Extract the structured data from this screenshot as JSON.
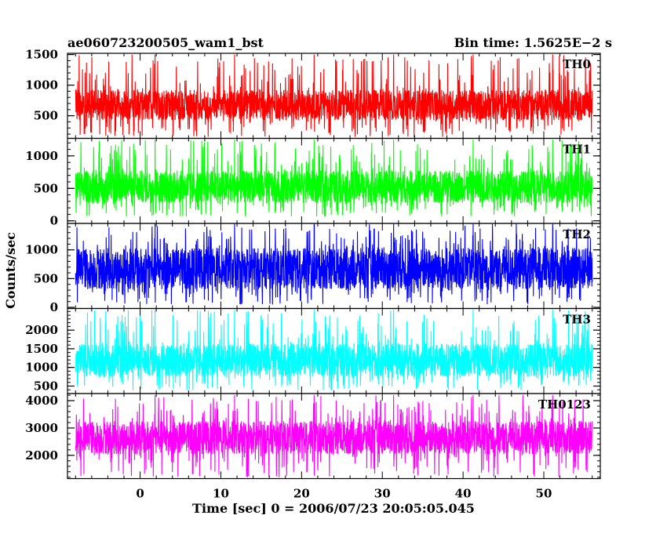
{
  "header": {
    "left_title": "ae060723200505_wam1_bst",
    "right_title": "Bin time: 1.5625E−2 s"
  },
  "chart_data": {
    "type": "line",
    "title": "ae060723200505_wam1_bst",
    "subtitle": "Bin time: 1.5625E−2 s",
    "xlabel": "Time [sec] 0 = 2006/07/23 20:05:05.045",
    "ylabel": "Counts/sec",
    "xlim": [
      -9,
      57
    ],
    "xticks": [
      0,
      10,
      20,
      30,
      40,
      50
    ],
    "data_x_range": [
      -8,
      56
    ],
    "panels": [
      {
        "name": "TH0",
        "color": "#ff0000",
        "ylim": [
          130,
          1520
        ],
        "yticks": [
          500,
          1000,
          1500
        ],
        "typical_range": [
          450,
          900
        ],
        "min": 150,
        "max": 1500,
        "values_sample": [
          720,
          410,
          980,
          560,
          1150,
          300,
          840,
          620,
          1020,
          380,
          760,
          900,
          520,
          1240,
          470,
          680,
          1080,
          330,
          810,
          600,
          950,
          440,
          1190,
          700,
          560,
          1350,
          420,
          880,
          640,
          1010
        ]
      },
      {
        "name": "TH1",
        "color": "#00ff00",
        "ylim": [
          -40,
          1270
        ],
        "yticks": [
          0,
          500,
          1000
        ],
        "typical_range": [
          300,
          750
        ],
        "min": 60,
        "max": 1250,
        "values_sample": [
          520,
          260,
          830,
          410,
          1010,
          180,
          690,
          450,
          900,
          330,
          610,
          760,
          380,
          1080,
          300,
          560,
          940,
          220,
          700,
          480,
          850,
          290,
          1120,
          600,
          420,
          1200,
          310,
          780,
          520,
          890
        ]
      },
      {
        "name": "TH2",
        "color": "#0000ff",
        "ylim": [
          -20,
          1460
        ],
        "yticks": [
          0,
          500,
          1000
        ],
        "typical_range": [
          350,
          1000
        ],
        "min": 50,
        "max": 1450,
        "values_sample": [
          700,
          300,
          1100,
          520,
          1280,
          210,
          880,
          610,
          1180,
          360,
          780,
          980,
          460,
          1330,
          340,
          690,
          1210,
          250,
          900,
          560,
          1080,
          320,
          1390,
          760,
          480,
          1420,
          370,
          950,
          640,
          1130
        ]
      },
      {
        "name": "TH3",
        "color": "#00ffff",
        "ylim": [
          300,
          2580
        ],
        "yticks": [
          500,
          1000,
          1500,
          2000
        ],
        "typical_range": [
          800,
          1600
        ],
        "min": 380,
        "max": 2550,
        "values_sample": [
          1200,
          700,
          1750,
          980,
          2100,
          560,
          1450,
          1040,
          1900,
          760,
          1300,
          1600,
          880,
          2250,
          720,
          1150,
          1980,
          600,
          1500,
          1000,
          1800,
          690,
          2400,
          1260,
          900,
          2500,
          740,
          1600,
          1100,
          1850
        ]
      },
      {
        "name": "TH0123",
        "color": "#ff00ff",
        "ylim": [
          1150,
          4260
        ],
        "yticks": [
          2000,
          3000,
          4000
        ],
        "typical_range": [
          2100,
          3200
        ],
        "min": 1200,
        "max": 4200,
        "values_sample": [
          2700,
          1900,
          3500,
          2300,
          3900,
          1600,
          3100,
          2450,
          3750,
          2000,
          2850,
          3300,
          2150,
          4050,
          1850,
          2650,
          3800,
          1700,
          3200,
          2400,
          3600,
          1900,
          4150,
          2900,
          2200,
          4200,
          1950,
          3350,
          2550,
          3650
        ]
      }
    ],
    "grid": false,
    "legend": "none"
  }
}
